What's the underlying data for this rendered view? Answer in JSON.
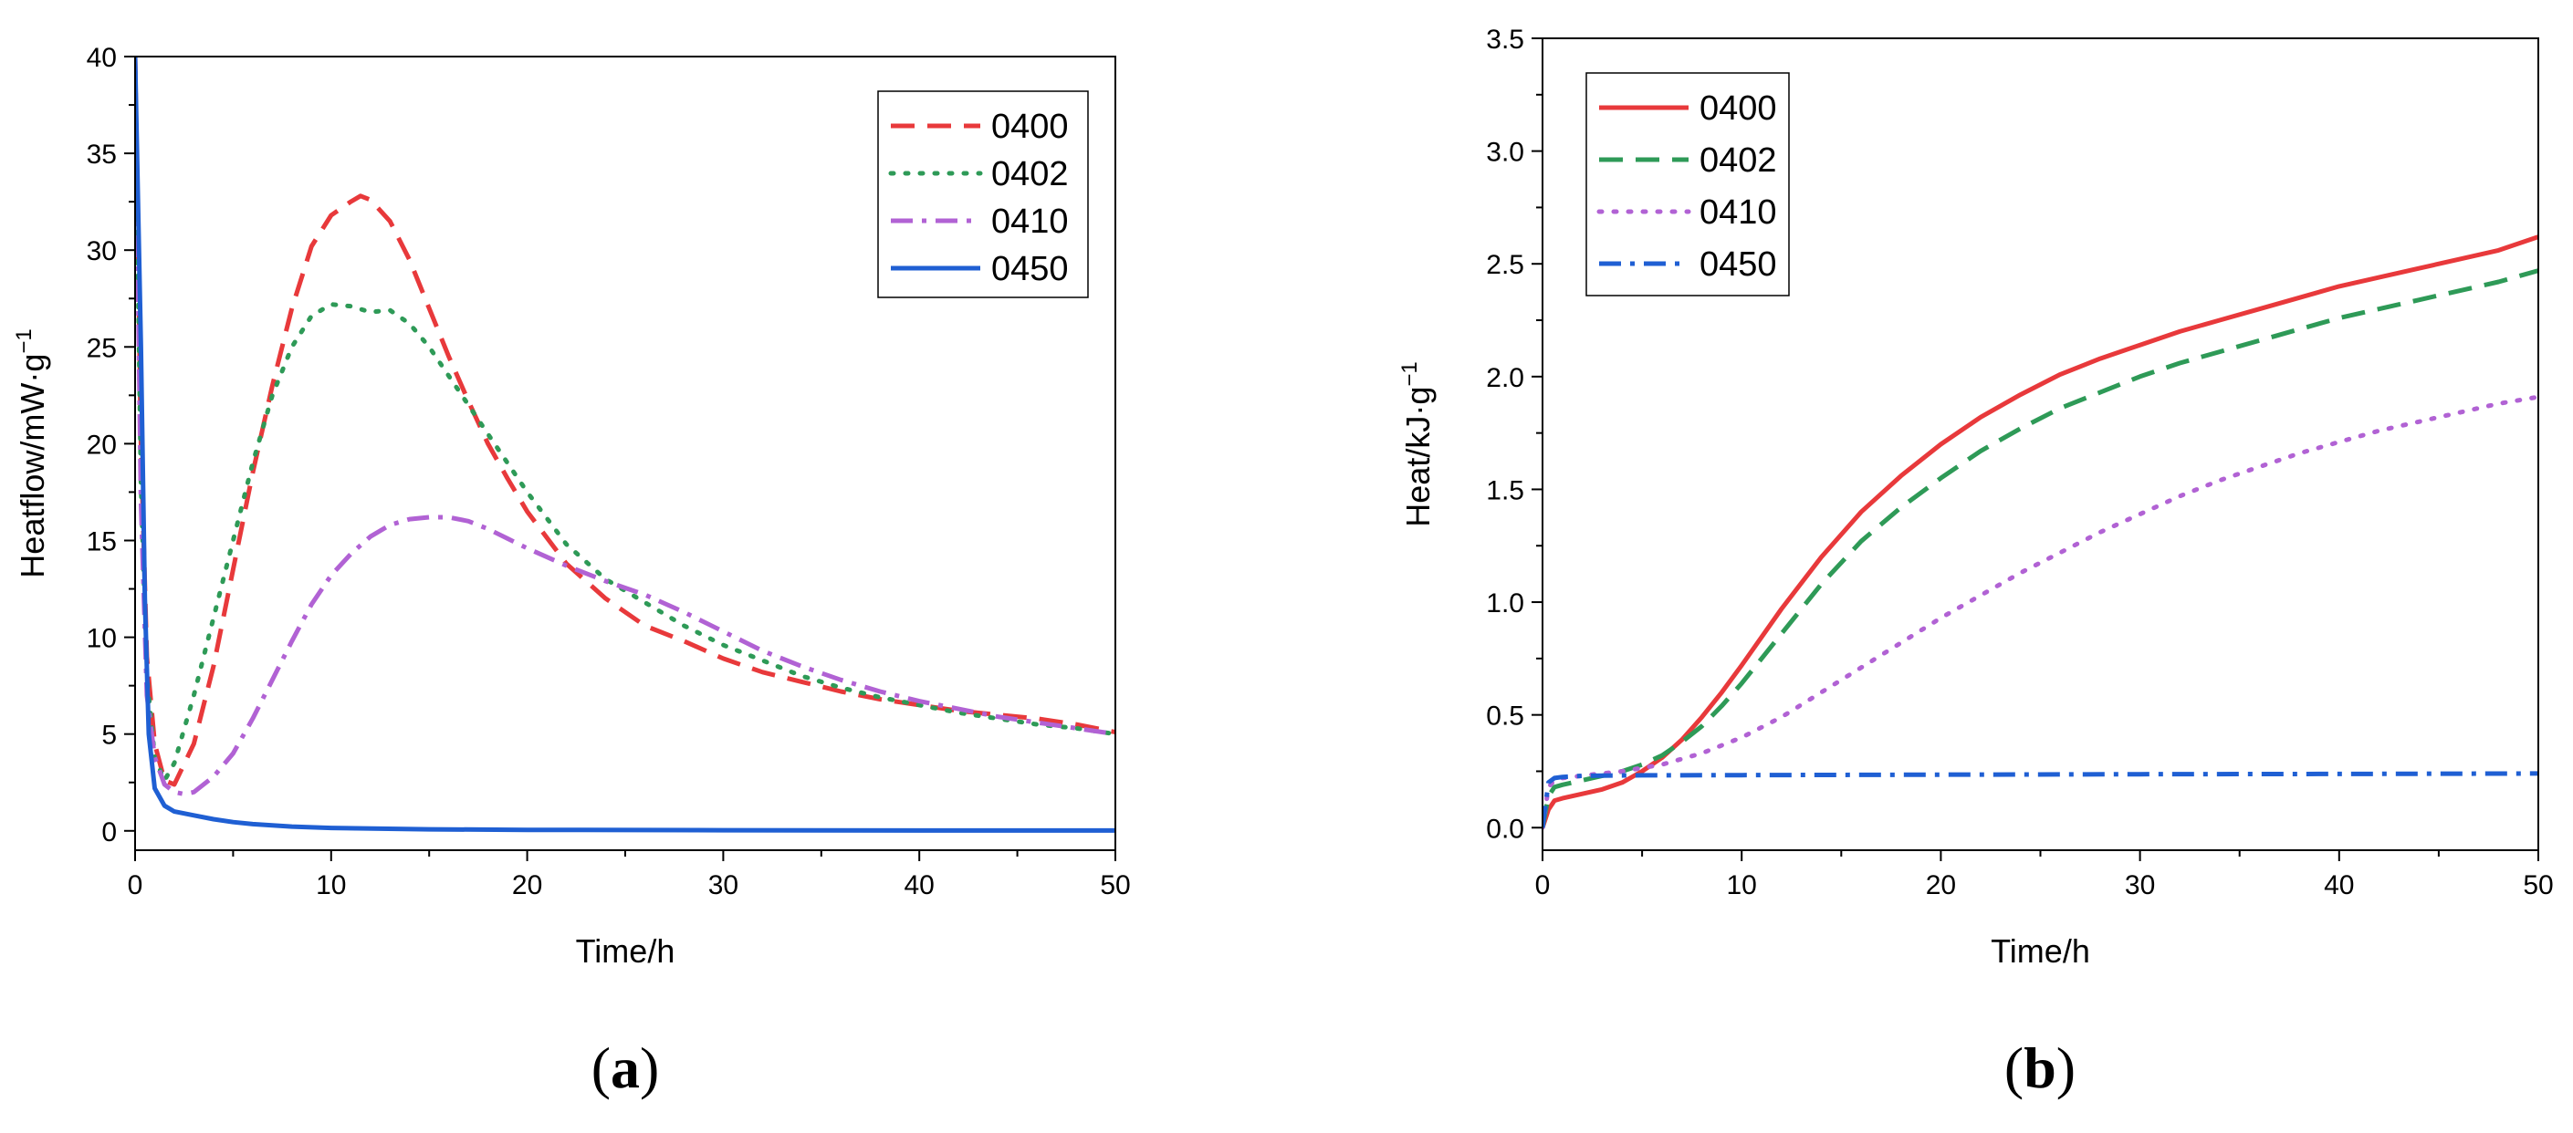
{
  "chart_data": [
    {
      "panel": "a",
      "panel_label": {
        "open": "(",
        "letter": "a",
        "close": ")"
      },
      "type": "line",
      "title": "",
      "xlabel": "Time/h",
      "ylabel": "Heatflow/mW·g",
      "ylabel_sup": "−1",
      "xlim": [
        0,
        50
      ],
      "ylim": [
        -1,
        40
      ],
      "xticks": [
        0,
        10,
        20,
        30,
        40,
        50
      ],
      "yticks": [
        0,
        5,
        10,
        15,
        20,
        25,
        30,
        35,
        40
      ],
      "legend_position": "top-right",
      "series": [
        {
          "name": "0400",
          "color": "#e8393b",
          "dash": "long-dash",
          "x": [
            0,
            0.3,
            0.6,
            1.0,
            1.5,
            2.0,
            3,
            4,
            5,
            6,
            7,
            8,
            9,
            10,
            11,
            11.5,
            12,
            13,
            14,
            15,
            16,
            17,
            18,
            19,
            20,
            22,
            24,
            26,
            28,
            30,
            32,
            34,
            36,
            38,
            40,
            42,
            44,
            46,
            48,
            50
          ],
          "y": [
            40,
            20,
            9,
            4.5,
            2.6,
            2.4,
            4.5,
            8.5,
            13.5,
            18.5,
            23,
            27,
            30.2,
            31.8,
            32.5,
            32.8,
            32.6,
            31.5,
            29.5,
            27,
            24.5,
            22.2,
            20,
            18.2,
            16.5,
            13.8,
            12,
            10.6,
            9.8,
            8.9,
            8.2,
            7.7,
            7.2,
            6.8,
            6.5,
            6.2,
            6.0,
            5.8,
            5.5,
            5.1
          ]
        },
        {
          "name": "0402",
          "color": "#2e9a57",
          "dash": "dot",
          "x": [
            0,
            0.3,
            0.6,
            1.0,
            1.5,
            2.0,
            3,
            4,
            5,
            6,
            7,
            8,
            9,
            10,
            11,
            12,
            13,
            14,
            15,
            16,
            17,
            18,
            19,
            20,
            22,
            24,
            26,
            28,
            30,
            32,
            34,
            36,
            38,
            40,
            42,
            44,
            46,
            48,
            50
          ],
          "y": [
            40,
            18,
            8,
            3.8,
            2.6,
            3.5,
            7,
            11,
            15,
            19,
            22.5,
            25,
            26.6,
            27.2,
            27.1,
            26.8,
            26.9,
            26.2,
            25,
            23.5,
            22,
            20.5,
            19,
            17.5,
            14.8,
            13,
            11.8,
            10.6,
            9.6,
            8.8,
            8.0,
            7.4,
            6.9,
            6.5,
            6.1,
            5.8,
            5.5,
            5.3,
            5.0
          ]
        },
        {
          "name": "0410",
          "color": "#b162d4",
          "dash": "dash-dot",
          "x": [
            0,
            0.3,
            0.6,
            1.0,
            1.5,
            2.0,
            2.5,
            3,
            4,
            5,
            6,
            7,
            8,
            9,
            10,
            11,
            12,
            13,
            14,
            15,
            16,
            17,
            18,
            19,
            20,
            22,
            24,
            26,
            28,
            30,
            32,
            34,
            36,
            38,
            40,
            42,
            44,
            46,
            48,
            50
          ],
          "y": [
            40,
            17,
            7,
            3.8,
            2.4,
            2.0,
            1.9,
            2.0,
            2.8,
            4.0,
            5.8,
            7.8,
            9.8,
            11.7,
            13.2,
            14.3,
            15.2,
            15.8,
            16.1,
            16.2,
            16.2,
            16.0,
            15.6,
            15.1,
            14.6,
            13.7,
            12.9,
            12.2,
            11.3,
            10.3,
            9.3,
            8.5,
            7.8,
            7.2,
            6.7,
            6.3,
            5.9,
            5.6,
            5.3,
            5.0
          ]
        },
        {
          "name": "0450",
          "color": "#1f5fd3",
          "dash": "solid",
          "x": [
            0,
            0.3,
            0.5,
            0.7,
            1.0,
            1.5,
            2.0,
            3,
            4,
            5,
            6,
            8,
            10,
            15,
            20,
            30,
            40,
            50
          ],
          "y": [
            40,
            25,
            12,
            5,
            2.2,
            1.3,
            1.0,
            0.8,
            0.6,
            0.45,
            0.35,
            0.22,
            0.15,
            0.08,
            0.05,
            0.03,
            0.02,
            0.02
          ]
        }
      ]
    },
    {
      "panel": "b",
      "panel_label": {
        "open": "(",
        "letter": "b",
        "close": ")"
      },
      "type": "line",
      "title": "",
      "xlabel": "Time/h",
      "ylabel": "Heat/kJ·g",
      "ylabel_sup": "−1",
      "xlim": [
        0,
        50
      ],
      "ylim": [
        -0.1,
        3.5
      ],
      "xticks": [
        0,
        10,
        20,
        30,
        40,
        50
      ],
      "yticks": [
        0.0,
        0.5,
        1.0,
        1.5,
        2.0,
        2.5,
        3.0,
        3.5
      ],
      "legend_position": "top-left",
      "series": [
        {
          "name": "0400",
          "color": "#e8393b",
          "dash": "solid",
          "x": [
            0,
            0.3,
            0.6,
            1,
            2,
            3,
            4,
            5,
            6,
            7,
            8,
            9,
            10,
            12,
            14,
            16,
            18,
            20,
            22,
            24,
            26,
            28,
            30,
            32,
            34,
            36,
            38,
            40,
            42,
            44,
            46,
            48,
            50
          ],
          "y": [
            0,
            0.08,
            0.12,
            0.13,
            0.15,
            0.17,
            0.2,
            0.25,
            0.31,
            0.39,
            0.49,
            0.6,
            0.72,
            0.97,
            1.2,
            1.4,
            1.56,
            1.7,
            1.82,
            1.92,
            2.01,
            2.08,
            2.14,
            2.2,
            2.25,
            2.3,
            2.35,
            2.4,
            2.44,
            2.48,
            2.52,
            2.56,
            2.62
          ]
        },
        {
          "name": "0402",
          "color": "#2e9a57",
          "dash": "long-dash",
          "x": [
            0,
            0.3,
            0.6,
            1,
            2,
            3,
            4,
            5,
            6,
            7,
            8,
            9,
            10,
            12,
            14,
            16,
            18,
            20,
            22,
            24,
            26,
            28,
            30,
            32,
            34,
            36,
            38,
            40,
            42,
            44,
            46,
            48,
            50
          ],
          "y": [
            0,
            0.14,
            0.18,
            0.19,
            0.21,
            0.23,
            0.25,
            0.28,
            0.32,
            0.38,
            0.45,
            0.54,
            0.64,
            0.86,
            1.08,
            1.27,
            1.42,
            1.55,
            1.67,
            1.77,
            1.86,
            1.93,
            2.0,
            2.06,
            2.11,
            2.16,
            2.21,
            2.26,
            2.3,
            2.34,
            2.38,
            2.42,
            2.47
          ]
        },
        {
          "name": "0410",
          "color": "#b162d4",
          "dash": "dot",
          "x": [
            0,
            0.3,
            0.6,
            1,
            2,
            3,
            4,
            6,
            8,
            10,
            12,
            14,
            16,
            18,
            20,
            22,
            24,
            26,
            28,
            30,
            32,
            34,
            36,
            38,
            40,
            42,
            44,
            46,
            48,
            50
          ],
          "y": [
            0,
            0.18,
            0.21,
            0.22,
            0.23,
            0.24,
            0.25,
            0.28,
            0.33,
            0.4,
            0.49,
            0.6,
            0.71,
            0.82,
            0.93,
            1.03,
            1.13,
            1.22,
            1.31,
            1.39,
            1.47,
            1.54,
            1.6,
            1.66,
            1.71,
            1.76,
            1.8,
            1.84,
            1.88,
            1.91
          ]
        },
        {
          "name": "0450",
          "color": "#1f5fd3",
          "dash": "dash-dot",
          "x": [
            0,
            0.3,
            0.6,
            1,
            2,
            5,
            10,
            20,
            30,
            40,
            50
          ],
          "y": [
            0,
            0.2,
            0.22,
            0.225,
            0.23,
            0.232,
            0.233,
            0.235,
            0.237,
            0.238,
            0.24
          ]
        }
      ]
    }
  ]
}
